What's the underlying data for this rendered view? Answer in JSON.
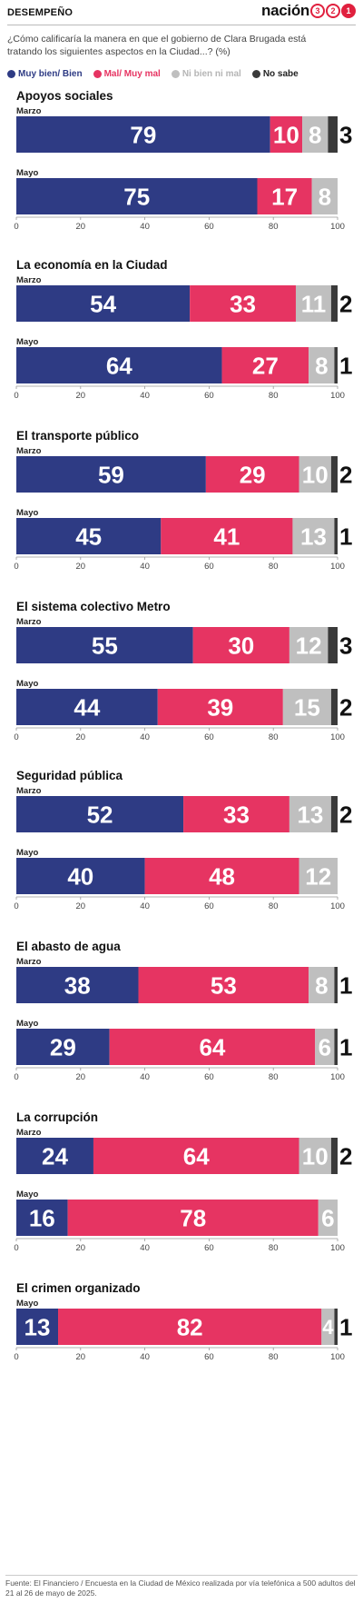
{
  "header": {
    "section": "DESEMPEÑO",
    "brand_word": "nación",
    "brand_digits": [
      "3",
      "2",
      "1"
    ]
  },
  "question": "¿Cómo calificaría la manera en que el gobierno de Clara Brugada está tratando los siguientes aspectos en la Ciudad...? (%)",
  "legend": [
    {
      "label": "Muy bien/ Bien",
      "color": "#2e3b84"
    },
    {
      "label": "Mal/ Muy mal",
      "color": "#e63462"
    },
    {
      "label": "Ni bien ni mal",
      "color": "#bfbfbf"
    },
    {
      "label": "No sabe",
      "color": "#3a3a3a"
    }
  ],
  "chart_data": {
    "type": "bar",
    "orientation": "horizontal",
    "stacked": true,
    "xlim": [
      0,
      100
    ],
    "x_ticks": [
      "0",
      "20",
      "40",
      "60",
      "80",
      "100"
    ],
    "series_names": [
      "Muy bien/ Bien",
      "Mal/ Muy mal",
      "Ni bien ni mal",
      "No sabe"
    ],
    "series_colors": [
      "#2e3b84",
      "#e63462",
      "#bfbfbf",
      "#3a3a3a"
    ],
    "groups": [
      {
        "title": "Apoyos sociales",
        "bars": [
          {
            "label": "Marzo",
            "values": [
              79,
              10,
              8,
              3
            ]
          },
          {
            "label": "Mayo",
            "values": [
              75,
              17,
              8,
              null
            ]
          }
        ]
      },
      {
        "title": "La economía en la Ciudad",
        "bars": [
          {
            "label": "Marzo",
            "values": [
              54,
              33,
              11,
              2
            ]
          },
          {
            "label": "Mayo",
            "values": [
              64,
              27,
              8,
              1
            ]
          }
        ]
      },
      {
        "title": "El transporte público",
        "bars": [
          {
            "label": "Marzo",
            "values": [
              59,
              29,
              10,
              2
            ]
          },
          {
            "label": "Mayo",
            "values": [
              45,
              41,
              13,
              1
            ]
          }
        ]
      },
      {
        "title": "El sistema colectivo Metro",
        "bars": [
          {
            "label": "Marzo",
            "values": [
              55,
              30,
              12,
              3
            ]
          },
          {
            "label": "Mayo",
            "values": [
              44,
              39,
              15,
              2
            ]
          }
        ]
      },
      {
        "title": "Seguridad pública",
        "bars": [
          {
            "label": "Marzo",
            "values": [
              52,
              33,
              13,
              2
            ]
          },
          {
            "label": "Mayo",
            "values": [
              40,
              48,
              12,
              null
            ]
          }
        ]
      },
      {
        "title": "El abasto de agua",
        "bars": [
          {
            "label": "Marzo",
            "values": [
              38,
              53,
              8,
              1
            ]
          },
          {
            "label": "Mayo",
            "values": [
              29,
              64,
              6,
              1
            ]
          }
        ]
      },
      {
        "title": "La corrupción",
        "bars": [
          {
            "label": "Marzo",
            "values": [
              24,
              64,
              10,
              2
            ]
          },
          {
            "label": "Mayo",
            "values": [
              16,
              78,
              6,
              null
            ]
          }
        ]
      },
      {
        "title": "El crimen organizado",
        "bars": [
          {
            "label": "Mayo",
            "values": [
              13,
              82,
              4,
              1
            ]
          }
        ]
      }
    ]
  },
  "footnote": "Fuente: El Financiero / Encuesta en la Ciudad de México realizada por vía telefónica a 500 adultos del 21 al 26 de mayo de 2025."
}
